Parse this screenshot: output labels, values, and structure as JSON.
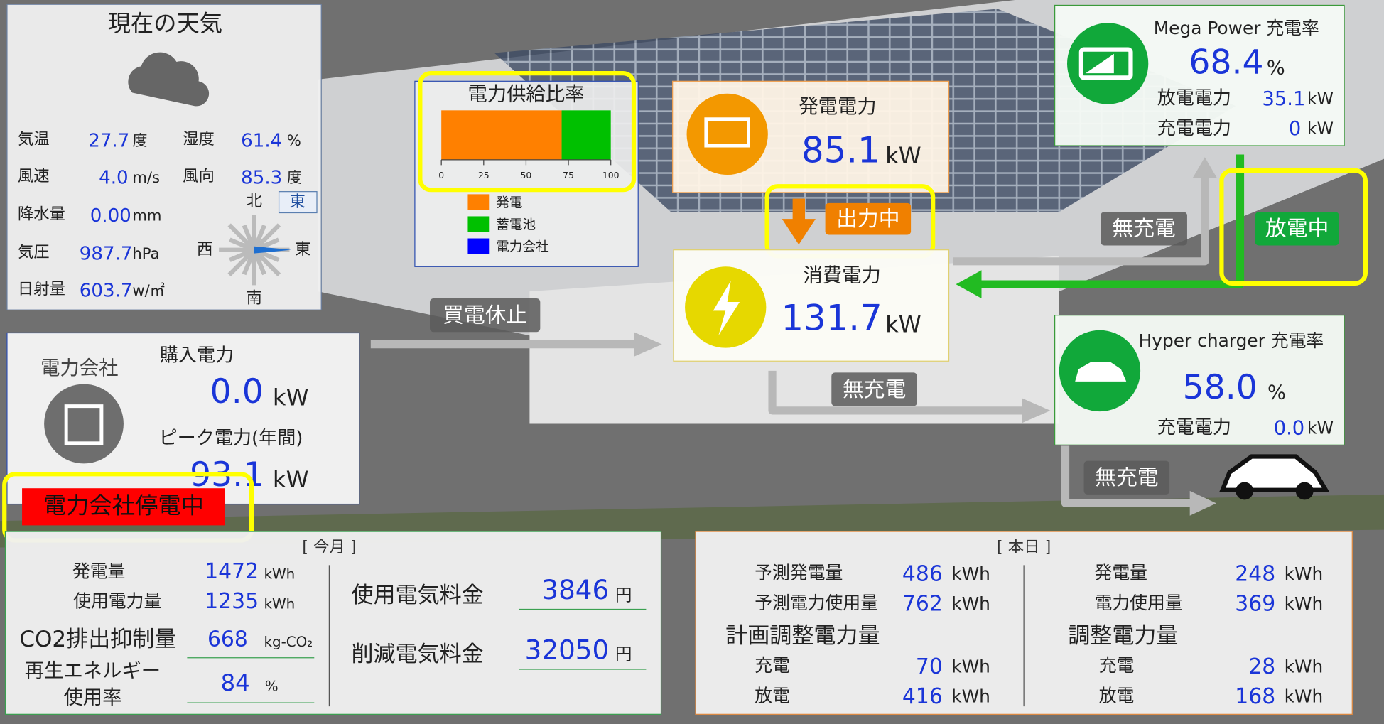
{
  "weather": {
    "title": "現在の天気",
    "temperature": {
      "label": "気温",
      "value": "27.7",
      "unit": "度"
    },
    "humidity": {
      "label": "湿度",
      "value": "61.4",
      "unit": "%"
    },
    "wind_speed": {
      "label": "風速",
      "value": "4.0",
      "unit": "m/s"
    },
    "wind_direction": {
      "label": "風向",
      "value": "85.3",
      "unit": "度"
    },
    "rainfall": {
      "label": "降水量",
      "value": "0.00",
      "unit": "mm"
    },
    "pressure": {
      "label": "気圧",
      "value": "987.7",
      "unit": "hPa"
    },
    "solar": {
      "label": "日射量",
      "value": "603.7",
      "unit": "w/㎡"
    },
    "compass": {
      "north": "北",
      "direction": "東",
      "west": "西",
      "east": "東",
      "south": "南"
    }
  },
  "supply_ratio": {
    "title": "電力供給比率",
    "xlim": [
      0,
      100
    ],
    "ticks": [
      0,
      25,
      50,
      75,
      100
    ],
    "series": [
      {
        "name": "発電",
        "color": "#ff8000",
        "value": 71
      },
      {
        "name": "蓄電池",
        "color": "#00c000",
        "value": 29
      },
      {
        "name": "電力会社",
        "color": "#0000ff",
        "value": 0
      }
    ]
  },
  "generation": {
    "label": "発電電力",
    "value": "85.1",
    "unit": "kW",
    "status": "出力中"
  },
  "consumption": {
    "label": "消費電力",
    "value": "131.7",
    "unit": "kW"
  },
  "battery": {
    "title": "Mega Power 充電率",
    "value": "68.4",
    "unit": "%",
    "discharge": {
      "label": "放電電力",
      "value": "35.1",
      "unit": "kW"
    },
    "charge": {
      "label": "充電電力",
      "value": "0",
      "unit": "kW"
    },
    "status": "放電中"
  },
  "charger": {
    "title": "Hyper charger 充電率",
    "value": "58.0",
    "unit": "%",
    "charge": {
      "label": "充電電力",
      "value": "0.0",
      "unit": "kW"
    }
  },
  "utility": {
    "title": "電力会社",
    "purchase": {
      "label": "購入電力",
      "value": "0.0",
      "unit": "kW"
    },
    "peak": {
      "label": "ピーク電力(年間)",
      "value": "93.1",
      "unit": "kW"
    },
    "alert": "電力会社停電中"
  },
  "flows": {
    "battery_in": "無充電",
    "grid": "買電休止",
    "consumption_out": "無充電",
    "car": "無充電"
  },
  "monthly": {
    "title": "[ 今月 ]",
    "generation": {
      "label": "発電量",
      "value": "1472",
      "unit": "kWh"
    },
    "usage": {
      "label": "使用電力量",
      "value": "1235",
      "unit": "kWh"
    },
    "co2": {
      "label": "CO2排出抑制量",
      "value": "668",
      "unit": "kg-CO₂"
    },
    "renewable": {
      "label_1": "再生エネルギー",
      "label_2": "使用率",
      "value": "84",
      "unit": "%"
    },
    "cost": {
      "label": "使用電気料金",
      "value": "3846",
      "unit": "円"
    },
    "saving": {
      "label": "削減電気料金",
      "value": "32050",
      "unit": "円"
    }
  },
  "today": {
    "title": "[ 本日 ]",
    "forecast_generation": {
      "label": "予測発電量",
      "value": "486",
      "unit": "kWh"
    },
    "forecast_usage": {
      "label": "予測電力使用量",
      "value": "762",
      "unit": "kWh"
    },
    "plan_title": "計画調整電力量",
    "plan_charge": {
      "label": "充電",
      "value": "70",
      "unit": "kWh"
    },
    "plan_discharge": {
      "label": "放電",
      "value": "416",
      "unit": "kWh"
    },
    "generation": {
      "label": "発電量",
      "value": "248",
      "unit": "kWh"
    },
    "usage": {
      "label": "電力使用量",
      "value": "369",
      "unit": "kWh"
    },
    "adjust_title": "調整電力量",
    "adjust_charge": {
      "label": "充電",
      "value": "28",
      "unit": "kWh"
    },
    "adjust_discharge": {
      "label": "放電",
      "value": "168",
      "unit": "kWh"
    }
  }
}
